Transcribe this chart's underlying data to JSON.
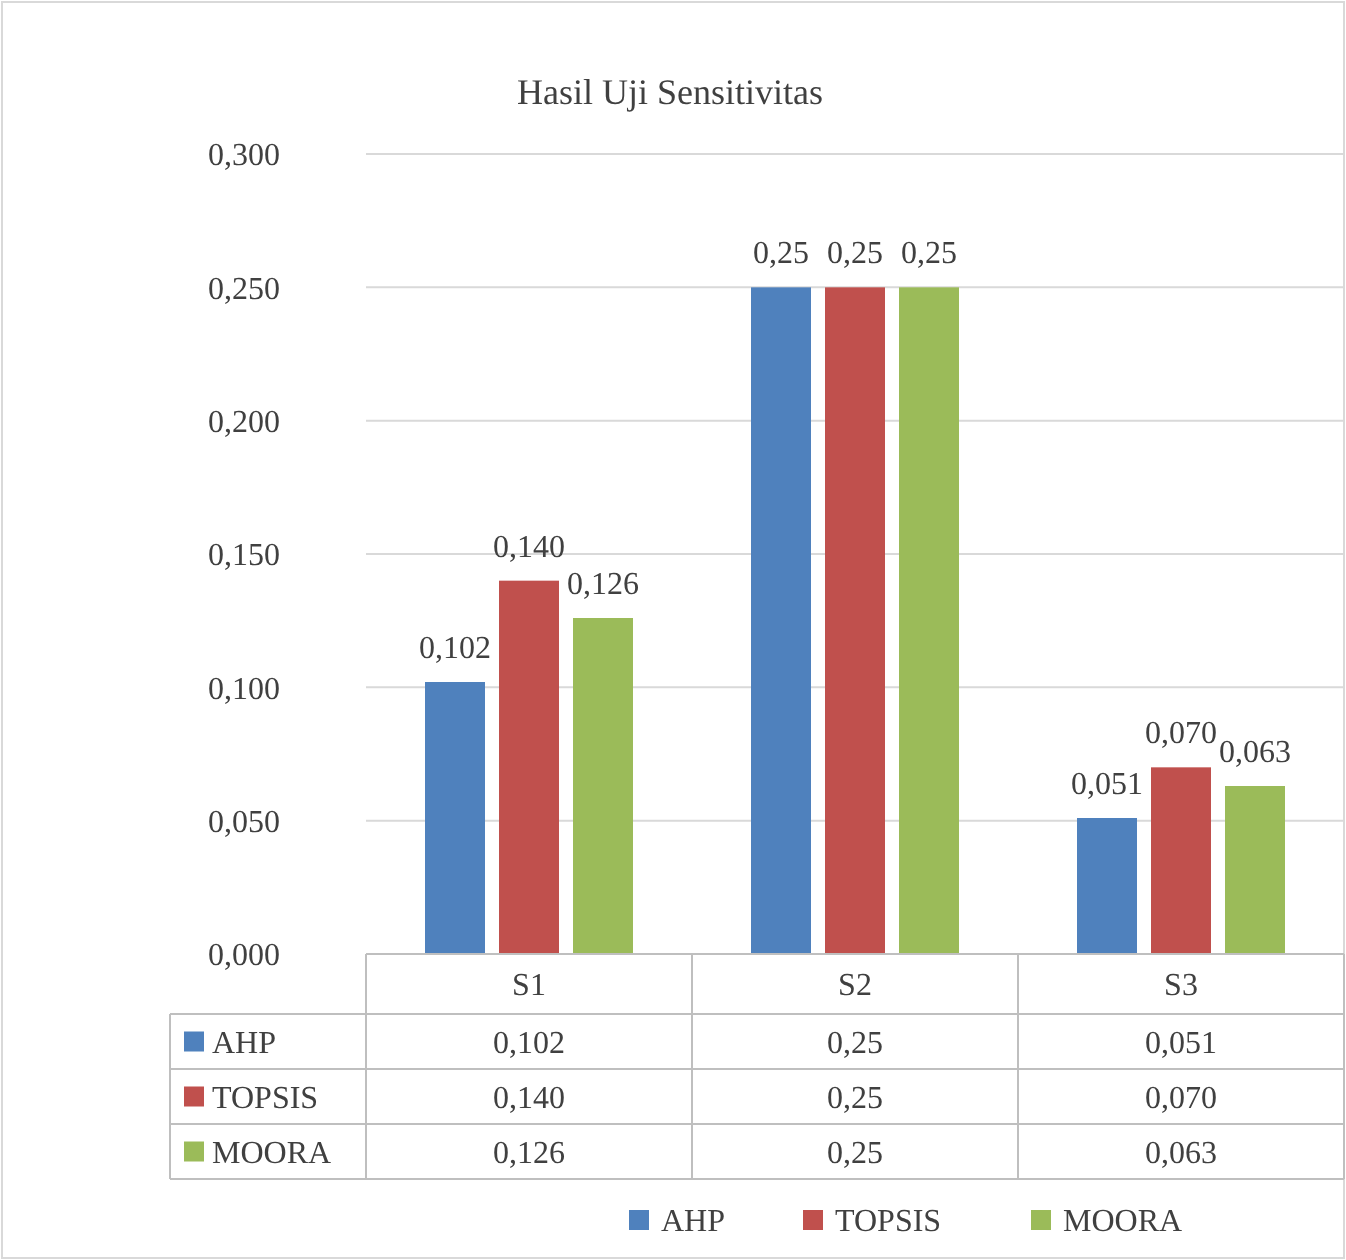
{
  "chart_data": {
    "type": "bar",
    "title": "Hasil Uji Sensitivitas",
    "categories": [
      "S1",
      "S2",
      "S3"
    ],
    "series": [
      {
        "name": "AHP",
        "color": "#4f81bd",
        "values": [
          0.102,
          0.25,
          0.051
        ],
        "value_labels": [
          "0,102",
          "0,25",
          "0,051"
        ]
      },
      {
        "name": "TOPSIS",
        "color": "#c0504d",
        "values": [
          0.14,
          0.25,
          0.07
        ],
        "value_labels": [
          "0,140",
          "0,25",
          "0,070"
        ]
      },
      {
        "name": "MOORA",
        "color": "#9bbb59",
        "values": [
          0.126,
          0.25,
          0.063
        ],
        "value_labels": [
          "0,126",
          "0,25",
          "0,063"
        ]
      }
    ],
    "ylim": [
      0,
      0.3
    ],
    "yticks": [
      {
        "value": 0,
        "label": "0,000"
      },
      {
        "value": 0.05,
        "label": "0,050"
      },
      {
        "value": 0.1,
        "label": "0,100"
      },
      {
        "value": 0.15,
        "label": "0,150"
      },
      {
        "value": 0.2,
        "label": "0,200"
      },
      {
        "value": 0.25,
        "label": "0,250"
      },
      {
        "value": 0.3,
        "label": "0,300"
      }
    ],
    "grid": "y",
    "legend": "bottom"
  }
}
